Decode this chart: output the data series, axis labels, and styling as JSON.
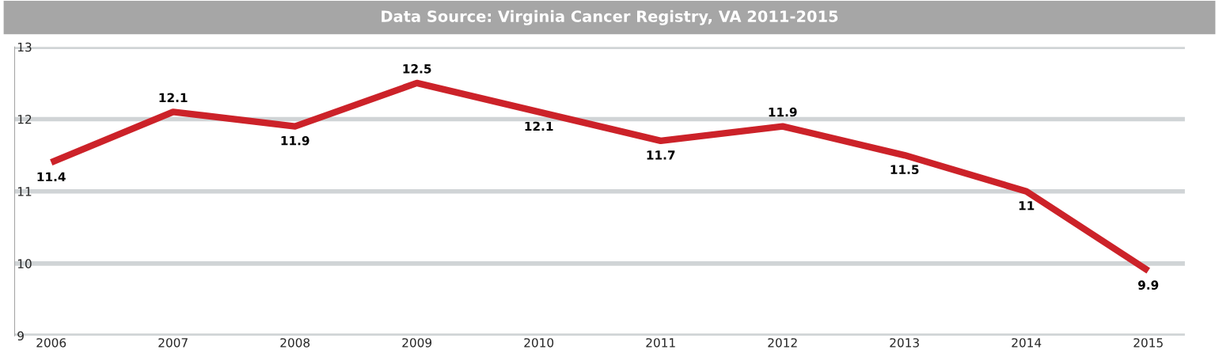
{
  "chart_data": {
    "type": "line",
    "title": "Data Source: Virginia Cancer Registry, VA 2011-2015",
    "categories": [
      "2006",
      "2007",
      "2008",
      "2009",
      "2010",
      "2011",
      "2012",
      "2013",
      "2014",
      "2015"
    ],
    "series": [
      {
        "color": "#cc2229",
        "values": [
          11.4,
          12.1,
          11.9,
          12.5,
          12.1,
          11.7,
          11.9,
          11.5,
          11,
          9.9
        ]
      }
    ],
    "ylim": [
      9,
      13
    ],
    "yticks": [
      9,
      10,
      11,
      12,
      13
    ],
    "grid": "y",
    "data_labels": true,
    "marker": "none",
    "line_style": "solid"
  }
}
